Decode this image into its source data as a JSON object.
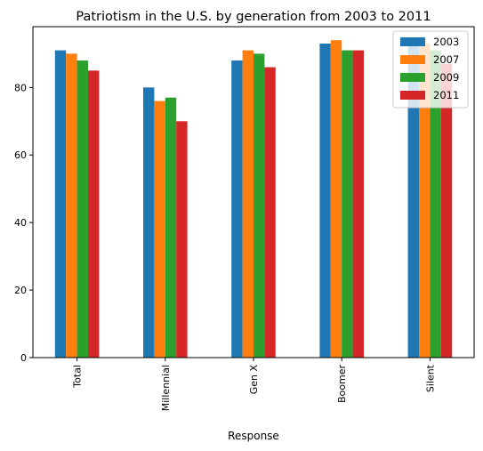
{
  "chart_data": {
    "type": "bar",
    "title": "Patriotism in the U.S. by generation from 2003 to 2011",
    "xlabel": "Response",
    "ylabel": "",
    "categories": [
      "Total",
      "Millennial",
      "Gen X",
      "Boomer",
      "Silent"
    ],
    "ylim": [
      0,
      98
    ],
    "yticks": [
      0,
      20,
      40,
      60,
      80
    ],
    "grid": false,
    "legend_position": "top-right",
    "series": [
      {
        "name": "2003",
        "color": "#1f77b4",
        "values": [
          91,
          80,
          88,
          93,
          94
        ]
      },
      {
        "name": "2007",
        "color": "#ff7f0e",
        "values": [
          90,
          76,
          91,
          94,
          93
        ]
      },
      {
        "name": "2009",
        "color": "#2ca02c",
        "values": [
          88,
          77,
          90,
          91,
          91
        ]
      },
      {
        "name": "2011",
        "color": "#d62728",
        "values": [
          85,
          70,
          86,
          91,
          87
        ]
      }
    ]
  }
}
